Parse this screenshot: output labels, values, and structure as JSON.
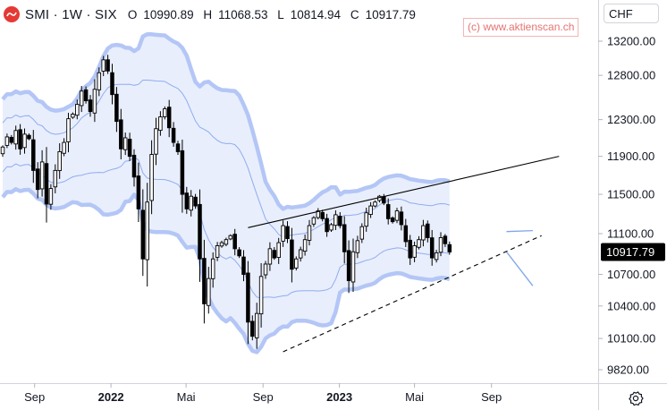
{
  "header": {
    "symbol_line": "SMI · 1W · SIX",
    "ohlc": [
      {
        "key": "O",
        "value": "10990.89"
      },
      {
        "key": "H",
        "value": "11068.53"
      },
      {
        "key": "L",
        "value": "10814.94"
      },
      {
        "key": "C",
        "value": "10917.79"
      }
    ]
  },
  "watermark": "(c) www.aktienscan.ch",
  "currency_selector": "CHF",
  "icons": {
    "logo": "smi-logo-icon",
    "settings": "gear-icon"
  },
  "colors": {
    "bull": "#ffffff",
    "bear": "#000000",
    "band_fill": "#e8eefc",
    "band_outer": "#b3c6f6",
    "band_inner": "#8fadee",
    "trendline": "#000000",
    "price_label_bg": "#000000",
    "price_label_text": "#ffffff"
  },
  "chart_data": {
    "type": "candlestick",
    "interval": "weekly",
    "y_ticks": [
      13200,
      12800,
      12300,
      11900,
      11500,
      11100,
      10700,
      10400,
      10100,
      9820
    ],
    "y_tick_labels": [
      "13200.00",
      "12800.00",
      "12300.00",
      "11900.00",
      "11500.00",
      "11100.00",
      "10700.00",
      "10400.00",
      "10100.00",
      "9820.00"
    ],
    "y_scale": "log",
    "ylim": [
      9650,
      13500
    ],
    "x_ticks": [
      {
        "label": "Sep",
        "date": "2021-09-01"
      },
      {
        "label": "2022",
        "date": "2022-01-01"
      },
      {
        "label": "Mai",
        "date": "2022-05-01"
      },
      {
        "label": "Sep",
        "date": "2022-09-01"
      },
      {
        "label": "2023",
        "date": "2023-01-01"
      },
      {
        "label": "Mai",
        "date": "2023-05-01"
      },
      {
        "label": "Sep",
        "date": "2023-09-01"
      }
    ],
    "last_price": {
      "label": "10917.79",
      "value": 10917.79
    },
    "first_week": "2021-07-12",
    "closes": [
      12000,
      12110,
      12050,
      12180,
      11980,
      12140,
      12090,
      11750,
      11550,
      11840,
      11400,
      11560,
      11750,
      11950,
      12050,
      12310,
      12360,
      12470,
      12620,
      12510,
      12390,
      12640,
      12830,
      12980,
      12850,
      12580,
      12280,
      11980,
      12100,
      11900,
      11680,
      11350,
      10850,
      11420,
      11920,
      12200,
      12330,
      12420,
      12210,
      12050,
      11950,
      11500,
      11350,
      11480,
      11380,
      10850,
      10420,
      10660,
      10850,
      10980,
      11010,
      11040,
      11080,
      10950,
      10880,
      10700,
      10250,
      10120,
      10330,
      10680,
      10800,
      10950,
      10860,
      11010,
      11180,
      11050,
      10750,
      10850,
      10940,
      11040,
      11180,
      11260,
      11330,
      11250,
      11120,
      11190,
      11290,
      11180,
      10920,
      10640,
      10920,
      11030,
      11170,
      11310,
      11380,
      11420,
      11480,
      11410,
      11250,
      11220,
      11330,
      11190,
      11020,
      10860,
      10980,
      11040,
      11180,
      11060,
      10860,
      10910,
      11060,
      11000,
      10917.79
    ],
    "bollinger_period": 20,
    "inner_band_std": 1,
    "outer_band_std": 2,
    "trendlines": [
      {
        "style": "solid",
        "from": {
          "date": "2022-08-08",
          "value": 11160
        },
        "to": {
          "date": "2023-12-18",
          "value": 11900
        }
      },
      {
        "style": "dashed",
        "from": {
          "date": "2022-10-03",
          "value": 9980
        },
        "to": {
          "date": "2023-11-20",
          "value": 11080
        }
      }
    ],
    "projection": {
      "upper": [
        {
          "date": "2023-09-25",
          "value": 11120
        },
        {
          "date": "2023-11-06",
          "value": 11130
        }
      ],
      "lower": [
        {
          "date": "2023-09-25",
          "value": 10920
        },
        {
          "date": "2023-11-06",
          "value": 10590
        }
      ]
    }
  }
}
